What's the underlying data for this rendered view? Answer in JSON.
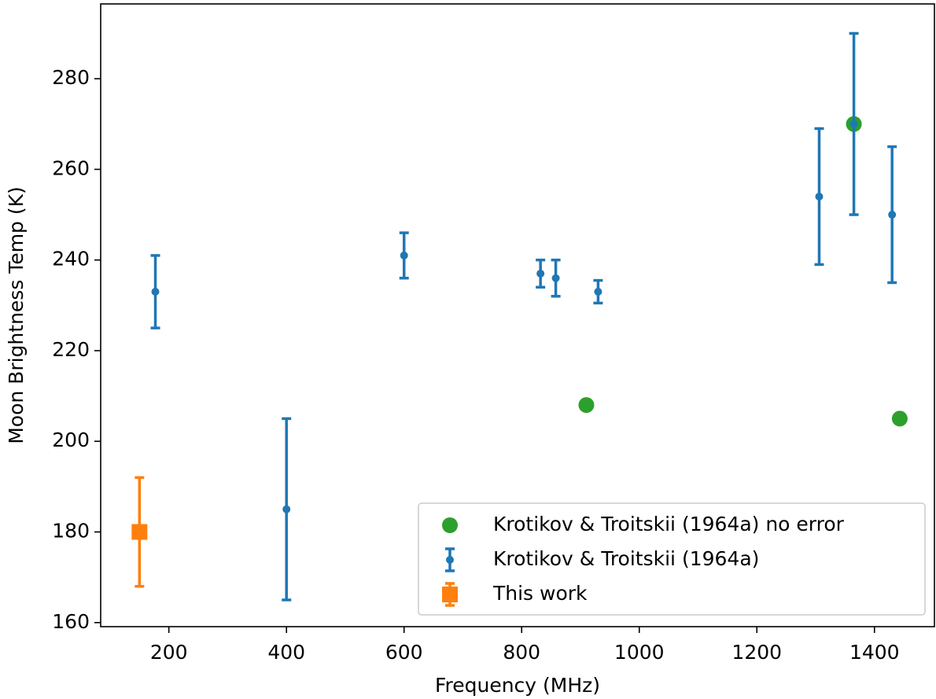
{
  "chart_data": {
    "type": "errorbar-scatter",
    "xlabel": "Frequency (MHz)",
    "ylabel": "Moon Brightness Temp (K)",
    "xlim": [
      84,
      1502
    ],
    "ylim": [
      159.1,
      296.5
    ],
    "xticks": [
      200,
      400,
      600,
      800,
      1000,
      1200,
      1400
    ],
    "yticks": [
      160,
      180,
      200,
      220,
      240,
      260,
      280
    ],
    "legend": "lower right",
    "series": [
      {
        "name": "Krotikov & Troitskii (1964a) no error",
        "color": "#2ca02c",
        "marker": "circle-large",
        "x": [
          910,
          1365,
          1443
        ],
        "values": [
          208,
          270,
          205
        ]
      },
      {
        "name": "Krotikov & Troitskii (1964a)",
        "color": "#1f77b4",
        "marker": "circle",
        "x": [
          177,
          400,
          600,
          832,
          858,
          930,
          1306,
          1365,
          1430
        ],
        "values": [
          233,
          185,
          241,
          237,
          236,
          233,
          254,
          270,
          250
        ],
        "errors": [
          8,
          20,
          5,
          3,
          4,
          2.5,
          15,
          20,
          15
        ]
      },
      {
        "name": "This work",
        "color": "#ff7f0e",
        "marker": "square",
        "x": [
          150
        ],
        "values": [
          180
        ],
        "errors": [
          12
        ]
      }
    ]
  }
}
